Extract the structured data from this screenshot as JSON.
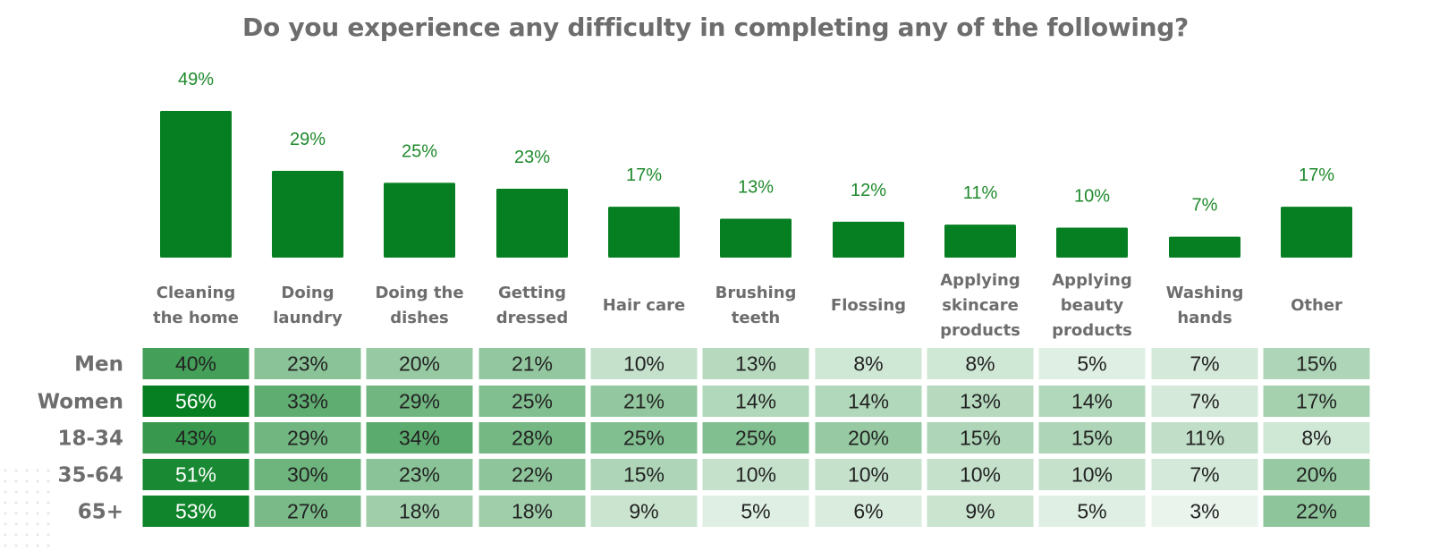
{
  "title": "Do you experience any difficulty in completing any of the following?",
  "colors": {
    "bar": "#067f22",
    "bar_label": "#1f8a2c",
    "title": "#6d6d6d",
    "heat_high": "#067f22",
    "heat_low": "#ffffff"
  },
  "chart_data": [
    {
      "type": "bar",
      "categories": [
        "Cleaning the home",
        "Doing laundry",
        "Doing the dishes",
        "Getting dressed",
        "Hair care",
        "Brushing teeth",
        "Flossing",
        "Applying skincare products",
        "Applying beauty products",
        "Washing hands",
        "Other"
      ],
      "values": [
        49,
        29,
        25,
        23,
        17,
        13,
        12,
        11,
        10,
        7,
        17
      ],
      "value_labels": [
        "49%",
        "29%",
        "25%",
        "23%",
        "17%",
        "13%",
        "12%",
        "11%",
        "10%",
        "7%",
        "17%"
      ],
      "category_label_lines": [
        [
          "Cleaning",
          "the home"
        ],
        [
          "Doing",
          "laundry"
        ],
        [
          "Doing the",
          "dishes"
        ],
        [
          "Getting",
          "dressed"
        ],
        [
          "Hair care"
        ],
        [
          "Brushing",
          "teeth"
        ],
        [
          "Flossing"
        ],
        [
          "Applying",
          "skincare",
          "products"
        ],
        [
          "Applying",
          "beauty",
          "products"
        ],
        [
          "Washing",
          "hands"
        ],
        [
          "Other"
        ]
      ],
      "ylim": [
        0,
        49
      ],
      "grid": false
    },
    {
      "type": "heatmap",
      "rows": [
        "Men",
        "Women",
        "18-34",
        "35-64",
        "65+"
      ],
      "columns": [
        "Cleaning the home",
        "Doing laundry",
        "Doing the dishes",
        "Getting dressed",
        "Hair care",
        "Brushing teeth",
        "Flossing",
        "Applying skincare products",
        "Applying beauty products",
        "Washing hands",
        "Other"
      ],
      "values": [
        [
          40,
          23,
          20,
          21,
          10,
          13,
          8,
          8,
          5,
          7,
          15
        ],
        [
          56,
          33,
          29,
          25,
          21,
          14,
          14,
          13,
          14,
          7,
          17
        ],
        [
          43,
          29,
          34,
          28,
          25,
          25,
          20,
          15,
          15,
          11,
          8
        ],
        [
          51,
          30,
          23,
          22,
          15,
          10,
          10,
          10,
          10,
          7,
          20
        ],
        [
          53,
          27,
          18,
          18,
          9,
          5,
          6,
          9,
          5,
          3,
          22
        ]
      ],
      "value_labels": [
        [
          "40%",
          "23%",
          "20%",
          "21%",
          "10%",
          "13%",
          "8%",
          "8%",
          "5%",
          "7%",
          "15%"
        ],
        [
          "56%",
          "33%",
          "29%",
          "25%",
          "21%",
          "14%",
          "14%",
          "13%",
          "14%",
          "7%",
          "17%"
        ],
        [
          "43%",
          "29%",
          "34%",
          "28%",
          "25%",
          "25%",
          "20%",
          "15%",
          "15%",
          "11%",
          "8%"
        ],
        [
          "51%",
          "30%",
          "23%",
          "22%",
          "15%",
          "10%",
          "10%",
          "10%",
          "10%",
          "7%",
          "20%"
        ],
        [
          "53%",
          "27%",
          "18%",
          "18%",
          "9%",
          "5%",
          "6%",
          "9%",
          "5%",
          "3%",
          "22%"
        ]
      ]
    }
  ]
}
